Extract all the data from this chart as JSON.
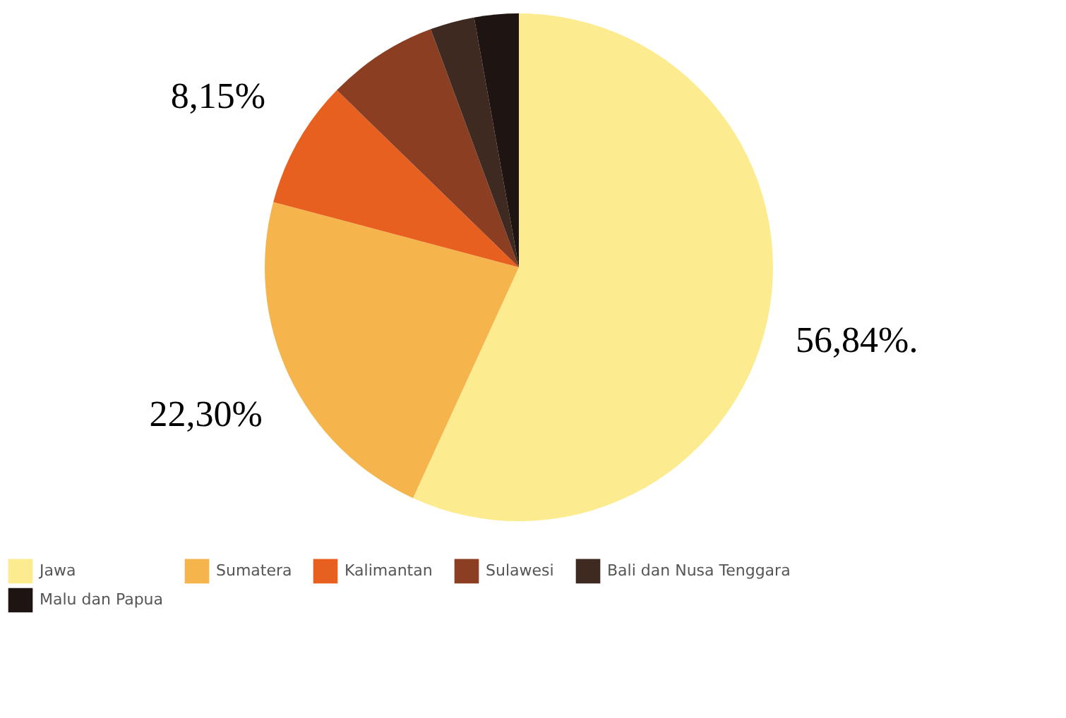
{
  "chart_data": {
    "type": "pie",
    "categories": [
      "Jawa",
      "Sumatera",
      "Kalimantan",
      "Sulawesi",
      "Bali dan Nusa Tenggara",
      "Malu dan Papua"
    ],
    "values": [
      56.84,
      22.3,
      8.15,
      7.07,
      2.82,
      2.82
    ],
    "colors": [
      "#fdec8f",
      "#f5b44c",
      "#e8601f",
      "#8b3e22",
      "#3f2a22",
      "#1e1412"
    ],
    "value_labels": [
      "56,84%.",
      "22,30%",
      "8,15%",
      null,
      null,
      null
    ],
    "legend": "bottom"
  }
}
